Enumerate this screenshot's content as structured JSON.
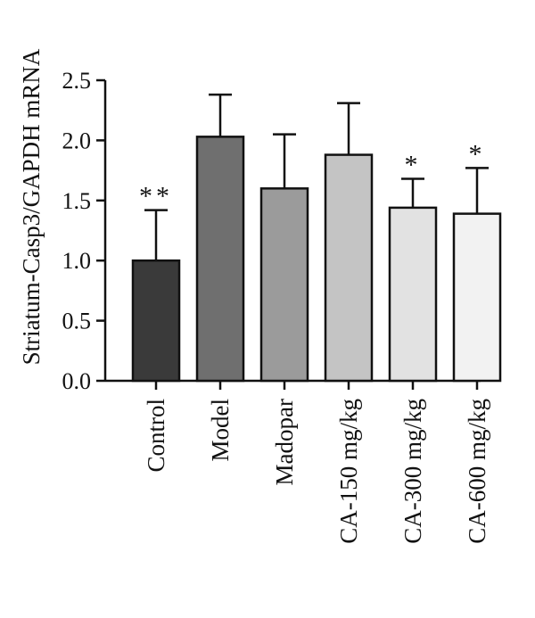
{
  "chart_data": {
    "type": "bar",
    "title": "",
    "xlabel": "",
    "ylabel": "Striatum-Casp3/GAPDH mRNA",
    "categories": [
      "Control",
      "Model",
      "Madopar",
      "CA-150 mg/kg",
      "CA-300 mg/kg",
      "CA-600 mg/kg"
    ],
    "values": [
      1.0,
      2.03,
      1.6,
      1.88,
      1.44,
      1.39
    ],
    "error_upper": [
      0.42,
      0.35,
      0.45,
      0.43,
      0.24,
      0.38
    ],
    "significance": [
      "**",
      "",
      "",
      "",
      "*",
      "*"
    ],
    "ylim": [
      0,
      2.5
    ],
    "yticks": [
      "0.0",
      "0.5",
      "1.0",
      "1.5",
      "2.0",
      "2.5"
    ],
    "bar_colors": [
      "#3a3a3a",
      "#6f6f6f",
      "#9b9b9b",
      "#c4c4c4",
      "#e2e2e2",
      "#f2f2f2"
    ],
    "bar_edge_color": "#111111",
    "grid": false,
    "legend": "none"
  }
}
